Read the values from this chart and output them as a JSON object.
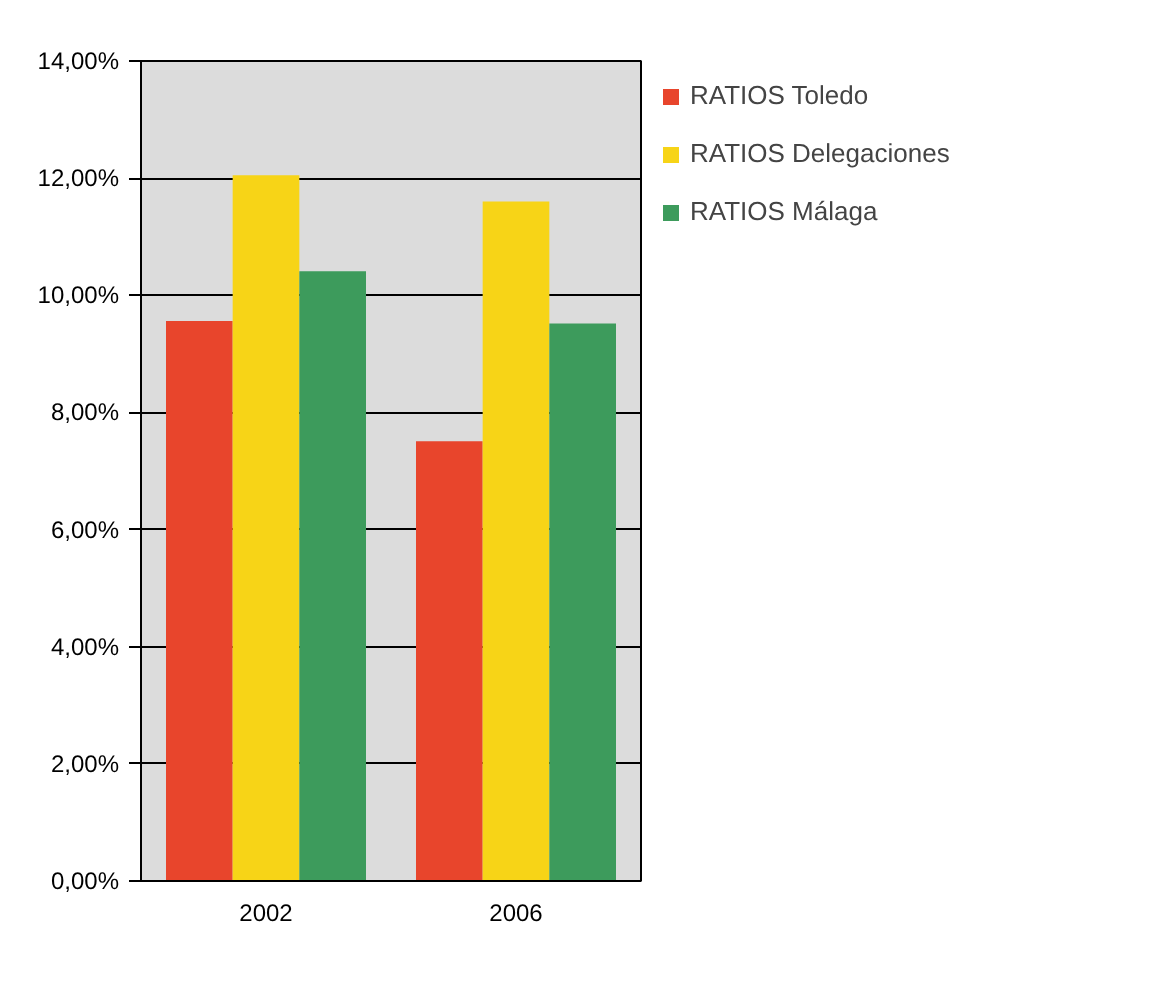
{
  "chart_data": {
    "type": "bar",
    "categories": [
      "2002",
      "2006"
    ],
    "series": [
      {
        "name": "RATIOS Toledo",
        "color": "#e8452c",
        "values": [
          9.56,
          7.51
        ]
      },
      {
        "name": "RATIOS Delegaciones",
        "color": "#f7d417",
        "values": [
          12.05,
          11.6
        ]
      },
      {
        "name": "RATIOS Málaga",
        "color": "#3d9b5c",
        "values": [
          10.41,
          9.52
        ]
      }
    ],
    "ylim": [
      0,
      14
    ],
    "yticks": [
      {
        "value": 0,
        "label": "0,00%"
      },
      {
        "value": 2,
        "label": "2,00%"
      },
      {
        "value": 4,
        "label": "4,00%"
      },
      {
        "value": 6,
        "label": "6,00%"
      },
      {
        "value": 8,
        "label": "8,00%"
      },
      {
        "value": 10,
        "label": "10,00%"
      },
      {
        "value": 12,
        "label": "12,00%"
      },
      {
        "value": 14,
        "label": "14,00%"
      }
    ],
    "grid": "y",
    "legend": "top right"
  }
}
